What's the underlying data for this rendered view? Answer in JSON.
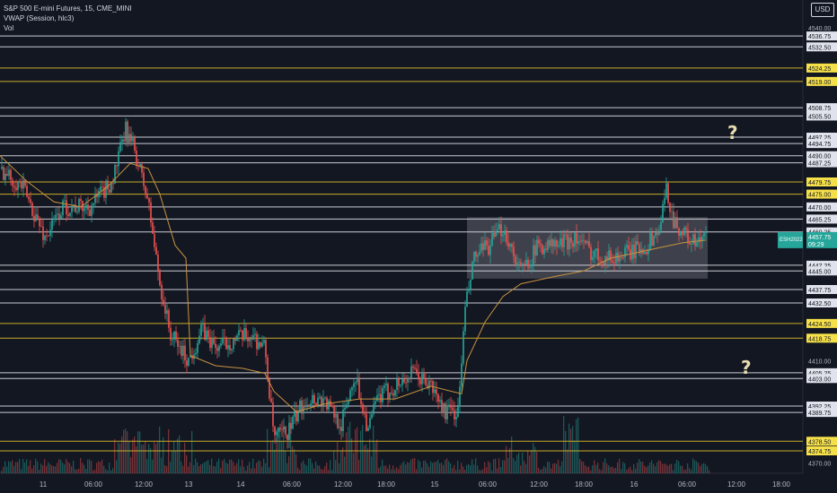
{
  "legend": {
    "symbol": "S&P 500 E-mini Futures, 15, CME_MINI",
    "vwap": "VWAP (Session, hlc3)",
    "vol": "Vol"
  },
  "currency_button": "USD",
  "annotations": [
    "?",
    "?"
  ],
  "colors": {
    "background": "#131722",
    "up": "#26a69a",
    "down": "#ef5350",
    "vwap": "#c8923f",
    "white_level": "#c9cbd1",
    "yellow_level": "#c7ab29",
    "yellow_label": "#f5e04a",
    "price_label": "#26a69a",
    "zone": "#9a9ca4"
  },
  "chart_data": {
    "type": "candlestick",
    "symbol": "S&P 500 E-mini Futures",
    "timeframe": "15",
    "ylim": [
      4366,
      4548
    ],
    "x_ticks": [
      "11",
      "06:00",
      "12:00",
      "13",
      "14",
      "06:00",
      "12:00",
      "18:00",
      "15",
      "06:00",
      "12:00",
      "18:00",
      "16",
      "06:00",
      "12:00",
      "18:00"
    ],
    "price_axis_labels": [
      "4540.00",
      "4410.00",
      "4370.00"
    ],
    "white_levels": [
      4536.75,
      4532.5,
      4508.75,
      4505.5,
      4497.25,
      4494.75,
      4490.0,
      4487.25,
      4470.0,
      4465.25,
      4460.25,
      4447.25,
      4445.0,
      4437.75,
      4432.5,
      4405.25,
      4403.0,
      4392.25,
      4389.75
    ],
    "yellow_levels": [
      4524.25,
      4519.0,
      4479.75,
      4475.0,
      4424.5,
      4418.75,
      4378.5,
      4374.75
    ],
    "current_price": {
      "symbol": "ESH2022",
      "price": "4457.75",
      "countdown": "09:29"
    },
    "consolidation_zone": {
      "price_high": 4466,
      "price_low": 4442
    },
    "close_path": [
      [
        0,
        4485
      ],
      [
        25,
        4478
      ],
      [
        50,
        4458
      ],
      [
        70,
        4470
      ],
      [
        100,
        4470
      ],
      [
        125,
        4480
      ],
      [
        140,
        4500
      ],
      [
        150,
        4492
      ],
      [
        165,
        4472
      ],
      [
        178,
        4440
      ],
      [
        190,
        4420
      ],
      [
        210,
        4410
      ],
      [
        225,
        4422
      ],
      [
        240,
        4415
      ],
      [
        260,
        4418
      ],
      [
        280,
        4420
      ],
      [
        295,
        4415
      ],
      [
        305,
        4380
      ],
      [
        320,
        4382
      ],
      [
        340,
        4395
      ],
      [
        360,
        4395
      ],
      [
        380,
        4385
      ],
      [
        395,
        4405
      ],
      [
        410,
        4383
      ],
      [
        420,
        4395
      ],
      [
        440,
        4400
      ],
      [
        460,
        4405
      ],
      [
        480,
        4400
      ],
      [
        495,
        4390
      ],
      [
        510,
        4390
      ],
      [
        518,
        4430
      ],
      [
        528,
        4450
      ],
      [
        545,
        4455
      ],
      [
        560,
        4462
      ],
      [
        580,
        4445
      ],
      [
        600,
        4455
      ],
      [
        620,
        4455
      ],
      [
        640,
        4458
      ],
      [
        660,
        4452
      ],
      [
        680,
        4450
      ],
      [
        700,
        4452
      ],
      [
        720,
        4455
      ],
      [
        735,
        4462
      ],
      [
        742,
        4477
      ],
      [
        750,
        4465
      ],
      [
        760,
        4460
      ],
      [
        775,
        4455
      ],
      [
        785,
        4458
      ]
    ],
    "vwap_path": [
      [
        0,
        4490
      ],
      [
        30,
        4480
      ],
      [
        60,
        4472
      ],
      [
        90,
        4470
      ],
      [
        120,
        4478
      ],
      [
        145,
        4487
      ],
      [
        165,
        4485
      ],
      [
        178,
        4475
      ],
      [
        195,
        4455
      ],
      [
        207,
        4450
      ],
      [
        212,
        4412
      ],
      [
        240,
        4408
      ],
      [
        270,
        4407
      ],
      [
        295,
        4405
      ],
      [
        305,
        4398
      ],
      [
        330,
        4390
      ],
      [
        360,
        4393
      ],
      [
        400,
        4395
      ],
      [
        440,
        4395
      ],
      [
        480,
        4400
      ],
      [
        514,
        4397
      ],
      [
        520,
        4410
      ],
      [
        540,
        4425
      ],
      [
        560,
        4435
      ],
      [
        580,
        4440
      ],
      [
        620,
        4443
      ],
      [
        650,
        4445
      ],
      [
        680,
        4450
      ],
      [
        720,
        4453
      ],
      [
        760,
        4456
      ],
      [
        785,
        4457
      ]
    ]
  }
}
